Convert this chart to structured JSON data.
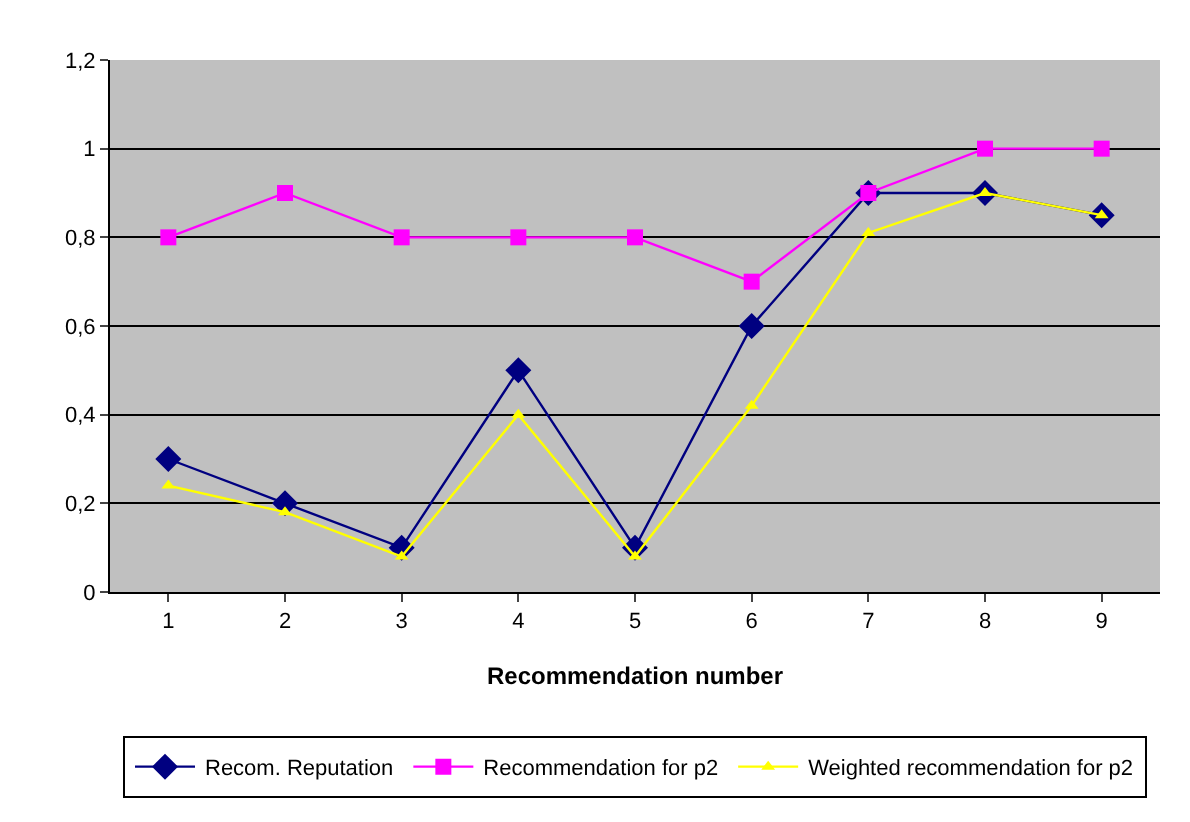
{
  "chart_data": {
    "type": "line",
    "xlabel": "Recommendation number",
    "categories": [
      "1",
      "2",
      "3",
      "4",
      "5",
      "6",
      "7",
      "8",
      "9"
    ],
    "series": [
      {
        "name": "Recom. Reputation",
        "color": "#000080",
        "marker": "diamond",
        "values": [
          0.3,
          0.2,
          0.1,
          0.5,
          0.1,
          0.6,
          0.9,
          0.9,
          0.85
        ]
      },
      {
        "name": "Recommendation for p2",
        "color": "#ff00ff",
        "marker": "square",
        "values": [
          0.8,
          0.9,
          0.8,
          0.8,
          0.8,
          0.7,
          0.9,
          1,
          1
        ]
      },
      {
        "name": "Weighted recommendation for p2",
        "color": "#ffff00",
        "marker": "triangle",
        "values": [
          0.24,
          0.18,
          0.08,
          0.4,
          0.08,
          0.42,
          0.81,
          0.9,
          0.85
        ]
      }
    ],
    "ylim": [
      0,
      1.2
    ],
    "yticks": [
      0,
      {
        "value": 0.2,
        "label": "0,2"
      },
      {
        "value": 0.4,
        "label": "0,4"
      },
      {
        "value": 0.6,
        "label": "0,6"
      },
      {
        "value": 0.8,
        "label": "0,8"
      },
      1,
      {
        "value": 1.2,
        "label": "1,2"
      }
    ],
    "grid": "y",
    "legend": "bottom",
    "line_style": "solid"
  }
}
